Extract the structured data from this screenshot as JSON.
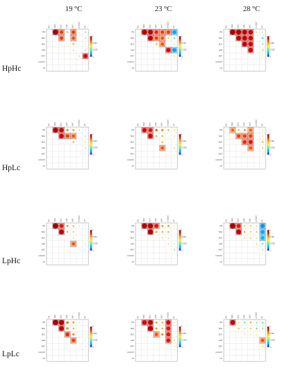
{
  "chart_data": {
    "type": "heatmap",
    "subtype": "correlogram-grid",
    "column_headers": [
      "19 °C",
      "23 °C",
      "28 °C"
    ],
    "row_headers": [
      "HpHc",
      "HpLc",
      "LpHc",
      "LpLc"
    ],
    "variables": [
      "PN",
      "TDO",
      "ELA",
      "LAP",
      "ANT",
      "α-GLUC",
      "LP"
    ],
    "colorbar_ticks": [
      "1",
      "0.333",
      "-0.333",
      "-1"
    ],
    "colorbar_colors": [
      "#0000c8",
      "#0096ff",
      "#00e6e6",
      "#7cf07c",
      "#ffff00",
      "#ffc000",
      "#ff6000",
      "#e00000",
      "#9b0000"
    ],
    "panels": [
      {
        "row": "HpHc",
        "col": "19 °C",
        "cells": [
          {
            "i": 0,
            "j": 1,
            "r": 0.95,
            "boxed": true
          },
          {
            "i": 0,
            "j": 2,
            "r": 0.6,
            "boxed": true
          },
          {
            "i": 0,
            "j": 3,
            "r": 0.3
          },
          {
            "i": 0,
            "j": 4,
            "r": 0.6,
            "boxed": true
          },
          {
            "i": 0,
            "j": 5,
            "r": 0.15
          },
          {
            "i": 0,
            "j": 6,
            "r": -0.25
          },
          {
            "i": 1,
            "j": 2,
            "r": 0.6,
            "boxed": true
          },
          {
            "i": 1,
            "j": 4,
            "r": 0.55,
            "boxed": true
          },
          {
            "i": 1,
            "j": 6,
            "r": -0.2
          },
          {
            "i": 2,
            "j": 4,
            "r": 0.3
          },
          {
            "i": 2,
            "j": 6,
            "r": -0.15
          },
          {
            "i": 3,
            "j": 4,
            "r": 0.2
          },
          {
            "i": 3,
            "j": 6,
            "r": 0.2
          },
          {
            "i": 4,
            "j": 5,
            "r": 0.2
          },
          {
            "i": 4,
            "j": 6,
            "r": 0.75,
            "boxed": true
          }
        ]
      },
      {
        "row": "HpHc",
        "col": "23 °C",
        "cells": [
          {
            "i": 0,
            "j": 1,
            "r": 0.9,
            "boxed": true
          },
          {
            "i": 0,
            "j": 2,
            "r": 0.85,
            "boxed": true
          },
          {
            "i": 0,
            "j": 3,
            "r": 0.65,
            "boxed": true
          },
          {
            "i": 0,
            "j": 4,
            "r": 0.6,
            "boxed": true
          },
          {
            "i": 0,
            "j": 5,
            "r": 0.6,
            "boxed": true
          },
          {
            "i": 0,
            "j": 6,
            "r": -0.7,
            "boxed": true
          },
          {
            "i": 1,
            "j": 2,
            "r": 0.85,
            "boxed": true
          },
          {
            "i": 1,
            "j": 3,
            "r": 0.6,
            "boxed": true
          },
          {
            "i": 1,
            "j": 4,
            "r": 0.55,
            "boxed": true
          },
          {
            "i": 1,
            "j": 5,
            "r": 0.25
          },
          {
            "i": 1,
            "j": 6,
            "r": -0.3
          },
          {
            "i": 2,
            "j": 3,
            "r": 0.3
          },
          {
            "i": 2,
            "j": 4,
            "r": 0.55,
            "boxed": true
          },
          {
            "i": 2,
            "j": 6,
            "r": -0.2
          },
          {
            "i": 3,
            "j": 5,
            "r": 0.75,
            "boxed": true
          },
          {
            "i": 3,
            "j": 6,
            "r": -0.7,
            "boxed": true
          },
          {
            "i": 4,
            "j": 6,
            "r": 0.2
          }
        ]
      },
      {
        "row": "HpHc",
        "col": "28 °C",
        "cells": [
          {
            "i": 0,
            "j": 1,
            "r": 0.95,
            "boxed": true
          },
          {
            "i": 0,
            "j": 2,
            "r": 0.9,
            "boxed": true
          },
          {
            "i": 0,
            "j": 3,
            "r": 0.85,
            "boxed": true
          },
          {
            "i": 0,
            "j": 4,
            "r": 0.8,
            "boxed": true
          },
          {
            "i": 0,
            "j": 5,
            "r": 0.2
          },
          {
            "i": 0,
            "j": 6,
            "r": -0.2
          },
          {
            "i": 1,
            "j": 2,
            "r": 0.85,
            "boxed": true
          },
          {
            "i": 1,
            "j": 3,
            "r": 0.85,
            "boxed": true
          },
          {
            "i": 1,
            "j": 4,
            "r": 0.8,
            "boxed": true
          },
          {
            "i": 1,
            "j": 6,
            "r": -0.35
          },
          {
            "i": 2,
            "j": 3,
            "r": 0.85,
            "boxed": true
          },
          {
            "i": 2,
            "j": 4,
            "r": 0.8,
            "boxed": true
          },
          {
            "i": 2,
            "j": 6,
            "r": -0.25
          },
          {
            "i": 3,
            "j": 4,
            "r": 0.8,
            "boxed": true
          },
          {
            "i": 3,
            "j": 6,
            "r": 0.25
          },
          {
            "i": 4,
            "j": 6,
            "r": 0.15
          }
        ]
      },
      {
        "row": "HpLc",
        "col": "19 °C",
        "cells": [
          {
            "i": 0,
            "j": 1,
            "r": 0.9,
            "boxed": true
          },
          {
            "i": 0,
            "j": 2,
            "r": 0.8,
            "boxed": true
          },
          {
            "i": 0,
            "j": 3,
            "r": 0.4
          },
          {
            "i": 0,
            "j": 4,
            "r": 0.35
          },
          {
            "i": 0,
            "j": 5,
            "r": 0.2
          },
          {
            "i": 0,
            "j": 6,
            "r": 0.15
          },
          {
            "i": 1,
            "j": 2,
            "r": 0.8,
            "boxed": true
          },
          {
            "i": 1,
            "j": 3,
            "r": 0.6,
            "boxed": true
          },
          {
            "i": 1,
            "j": 4,
            "r": 0.55,
            "boxed": true
          },
          {
            "i": 1,
            "j": 6,
            "r": -0.2
          },
          {
            "i": 2,
            "j": 4,
            "r": 0.3
          },
          {
            "i": 2,
            "j": 6,
            "r": 0.2
          },
          {
            "i": 3,
            "j": 6,
            "r": 0.2
          },
          {
            "i": 4,
            "j": 6,
            "r": 0.15
          }
        ]
      },
      {
        "row": "HpLc",
        "col": "23 °C",
        "cells": [
          {
            "i": 0,
            "j": 1,
            "r": 0.75,
            "boxed": true
          },
          {
            "i": 0,
            "j": 2,
            "r": 0.7,
            "boxed": true
          },
          {
            "i": 0,
            "j": 3,
            "r": 0.45
          },
          {
            "i": 0,
            "j": 4,
            "r": 0.4
          },
          {
            "i": 0,
            "j": 5,
            "r": 0.3
          },
          {
            "i": 0,
            "j": 6,
            "r": 0.2
          },
          {
            "i": 1,
            "j": 2,
            "r": 0.8,
            "boxed": true
          },
          {
            "i": 1,
            "j": 3,
            "r": 0.3
          },
          {
            "i": 1,
            "j": 4,
            "r": 0.3
          },
          {
            "i": 1,
            "j": 6,
            "r": 0.2
          },
          {
            "i": 2,
            "j": 4,
            "r": 0.3
          },
          {
            "i": 3,
            "j": 4,
            "r": 0.55,
            "boxed": true
          },
          {
            "i": 3,
            "j": 6,
            "r": 0.2
          }
        ]
      },
      {
        "row": "HpLc",
        "col": "28 °C",
        "cells": [
          {
            "i": 0,
            "j": 1,
            "r": 0.5,
            "boxed": true
          },
          {
            "i": 0,
            "j": 2,
            "r": 0.3
          },
          {
            "i": 0,
            "j": 3,
            "r": 0.35
          },
          {
            "i": 0,
            "j": 4,
            "r": 0.5,
            "boxed": true
          },
          {
            "i": 0,
            "j": 6,
            "r": -0.15
          },
          {
            "i": 1,
            "j": 2,
            "r": 0.6,
            "boxed": true
          },
          {
            "i": 1,
            "j": 3,
            "r": 0.6,
            "boxed": true
          },
          {
            "i": 1,
            "j": 4,
            "r": 0.6,
            "boxed": true
          },
          {
            "i": 1,
            "j": 6,
            "r": 0.2
          },
          {
            "i": 2,
            "j": 3,
            "r": 0.65,
            "boxed": true
          },
          {
            "i": 2,
            "j": 4,
            "r": 0.7,
            "boxed": true
          },
          {
            "i": 2,
            "j": 6,
            "r": 0.3
          },
          {
            "i": 3,
            "j": 4,
            "r": 0.55,
            "boxed": true
          },
          {
            "i": 3,
            "j": 6,
            "r": 0.25
          },
          {
            "i": 4,
            "j": 6,
            "r": 0.15
          }
        ]
      },
      {
        "row": "LpHc",
        "col": "19 °C",
        "cells": [
          {
            "i": 0,
            "j": 1,
            "r": 0.95,
            "boxed": true
          },
          {
            "i": 0,
            "j": 2,
            "r": 0.7,
            "boxed": true
          },
          {
            "i": 0,
            "j": 3,
            "r": 0.35
          },
          {
            "i": 0,
            "j": 4,
            "r": 0.3
          },
          {
            "i": 0,
            "j": 5,
            "r": 0.15
          },
          {
            "i": 0,
            "j": 6,
            "r": 0.1
          },
          {
            "i": 1,
            "j": 2,
            "r": 0.85,
            "boxed": true
          },
          {
            "i": 1,
            "j": 3,
            "r": 0.3
          },
          {
            "i": 1,
            "j": 4,
            "r": 0.25
          },
          {
            "i": 2,
            "j": 4,
            "r": 0.2
          },
          {
            "i": 3,
            "j": 4,
            "r": 0.55,
            "boxed": true
          },
          {
            "i": 3,
            "j": 6,
            "r": 0.15
          },
          {
            "i": 4,
            "j": 6,
            "r": 0.15
          }
        ]
      },
      {
        "row": "LpHc",
        "col": "23 °C",
        "cells": [
          {
            "i": 0,
            "j": 1,
            "r": 0.9,
            "boxed": true
          },
          {
            "i": 0,
            "j": 2,
            "r": 0.9,
            "boxed": true
          },
          {
            "i": 0,
            "j": 3,
            "r": 0.7,
            "boxed": true
          },
          {
            "i": 0,
            "j": 4,
            "r": 0.35
          },
          {
            "i": 0,
            "j": 5,
            "r": 0.35
          },
          {
            "i": 0,
            "j": 6,
            "r": 0.15
          },
          {
            "i": 1,
            "j": 2,
            "r": 0.9,
            "boxed": true
          },
          {
            "i": 1,
            "j": 3,
            "r": 0.35
          },
          {
            "i": 1,
            "j": 4,
            "r": 0.3
          },
          {
            "i": 1,
            "j": 5,
            "r": 0.3
          },
          {
            "i": 2,
            "j": 4,
            "r": 0.2
          },
          {
            "i": 2,
            "j": 5,
            "r": 0.2
          },
          {
            "i": 3,
            "j": 5,
            "r": 0.2
          },
          {
            "i": 3,
            "j": 6,
            "r": -0.15
          },
          {
            "i": 4,
            "j": 6,
            "r": -0.25
          }
        ]
      },
      {
        "row": "LpHc",
        "col": "28 °C",
        "cells": [
          {
            "i": 0,
            "j": 1,
            "r": 0.95,
            "boxed": true
          },
          {
            "i": 0,
            "j": 2,
            "r": 0.7,
            "boxed": true
          },
          {
            "i": 0,
            "j": 3,
            "r": 0.25
          },
          {
            "i": 0,
            "j": 4,
            "r": 0.25
          },
          {
            "i": 0,
            "j": 5,
            "r": 0.2
          },
          {
            "i": 0,
            "j": 6,
            "r": -0.75,
            "boxed": true
          },
          {
            "i": 1,
            "j": 2,
            "r": 0.85,
            "boxed": true
          },
          {
            "i": 1,
            "j": 3,
            "r": 0.3
          },
          {
            "i": 1,
            "j": 4,
            "r": 0.25
          },
          {
            "i": 1,
            "j": 5,
            "r": 0.25
          },
          {
            "i": 1,
            "j": 6,
            "r": -0.7,
            "boxed": true
          },
          {
            "i": 2,
            "j": 3,
            "r": 0.2
          },
          {
            "i": 2,
            "j": 4,
            "r": 0.25
          },
          {
            "i": 2,
            "j": 5,
            "r": 0.2
          },
          {
            "i": 2,
            "j": 6,
            "r": -0.65,
            "boxed": true
          },
          {
            "i": 3,
            "j": 5,
            "r": 0.2
          },
          {
            "i": 3,
            "j": 6,
            "r": -0.3
          },
          {
            "i": 4,
            "j": 6,
            "r": -0.2
          }
        ]
      },
      {
        "row": "LpLc",
        "col": "19 °C",
        "cells": [
          {
            "i": 0,
            "j": 1,
            "r": 0.95,
            "boxed": true
          },
          {
            "i": 0,
            "j": 2,
            "r": 0.9,
            "boxed": true
          },
          {
            "i": 0,
            "j": 3,
            "r": 0.45
          },
          {
            "i": 0,
            "j": 4,
            "r": 0.35
          },
          {
            "i": 0,
            "j": 5,
            "r": 0.15
          },
          {
            "i": 1,
            "j": 2,
            "r": 0.85,
            "boxed": true
          },
          {
            "i": 1,
            "j": 3,
            "r": 0.4
          },
          {
            "i": 1,
            "j": 4,
            "r": 0.3
          },
          {
            "i": 2,
            "j": 3,
            "r": 0.65,
            "boxed": true
          },
          {
            "i": 2,
            "j": 4,
            "r": 0.4
          },
          {
            "i": 3,
            "j": 4,
            "r": 0.6,
            "boxed": true
          },
          {
            "i": 3,
            "j": 6,
            "r": 0.15
          },
          {
            "i": 4,
            "j": 6,
            "r": 0.15
          }
        ]
      },
      {
        "row": "LpLc",
        "col": "23 °C",
        "cells": [
          {
            "i": 0,
            "j": 1,
            "r": 0.8,
            "boxed": true
          },
          {
            "i": 0,
            "j": 2,
            "r": 0.85,
            "boxed": true
          },
          {
            "i": 0,
            "j": 3,
            "r": 0.35
          },
          {
            "i": 0,
            "j": 4,
            "r": 0.3
          },
          {
            "i": 0,
            "j": 5,
            "r": 0.75,
            "boxed": true
          },
          {
            "i": 0,
            "j": 6,
            "r": 0.15
          },
          {
            "i": 1,
            "j": 2,
            "r": 0.9,
            "boxed": true
          },
          {
            "i": 1,
            "j": 3,
            "r": 0.35
          },
          {
            "i": 1,
            "j": 4,
            "r": 0.3
          },
          {
            "i": 1,
            "j": 5,
            "r": 0.7,
            "boxed": true
          },
          {
            "i": 2,
            "j": 3,
            "r": 0.55,
            "boxed": true
          },
          {
            "i": 2,
            "j": 4,
            "r": 0.4
          },
          {
            "i": 2,
            "j": 5,
            "r": 0.7,
            "boxed": true
          },
          {
            "i": 3,
            "j": 5,
            "r": 0.7,
            "boxed": true
          },
          {
            "i": 3,
            "j": 6,
            "r": 0.2
          },
          {
            "i": 4,
            "j": 6,
            "r": 0.15
          }
        ]
      },
      {
        "row": "LpLc",
        "col": "28 °C",
        "cells": [
          {
            "i": 0,
            "j": 1,
            "r": 0.85,
            "boxed": true
          },
          {
            "i": 0,
            "j": 2,
            "r": 0.2
          },
          {
            "i": 0,
            "j": 3,
            "r": -0.3
          },
          {
            "i": 0,
            "j": 4,
            "r": 0.3
          },
          {
            "i": 0,
            "j": 5,
            "r": -0.25
          },
          {
            "i": 0,
            "j": 6,
            "r": -0.3
          },
          {
            "i": 1,
            "j": 2,
            "r": 0.25
          },
          {
            "i": 1,
            "j": 3,
            "r": -0.2
          },
          {
            "i": 1,
            "j": 4,
            "r": 0.25
          },
          {
            "i": 1,
            "j": 5,
            "r": -0.3
          },
          {
            "i": 1,
            "j": 6,
            "r": -0.25
          },
          {
            "i": 2,
            "j": 3,
            "r": 0.15
          },
          {
            "i": 2,
            "j": 4,
            "r": 0.15
          },
          {
            "i": 2,
            "j": 5,
            "r": 0.15
          },
          {
            "i": 3,
            "j": 6,
            "r": 0.55,
            "boxed": true
          },
          {
            "i": 4,
            "j": 6,
            "r": 0.2
          }
        ]
      }
    ]
  }
}
